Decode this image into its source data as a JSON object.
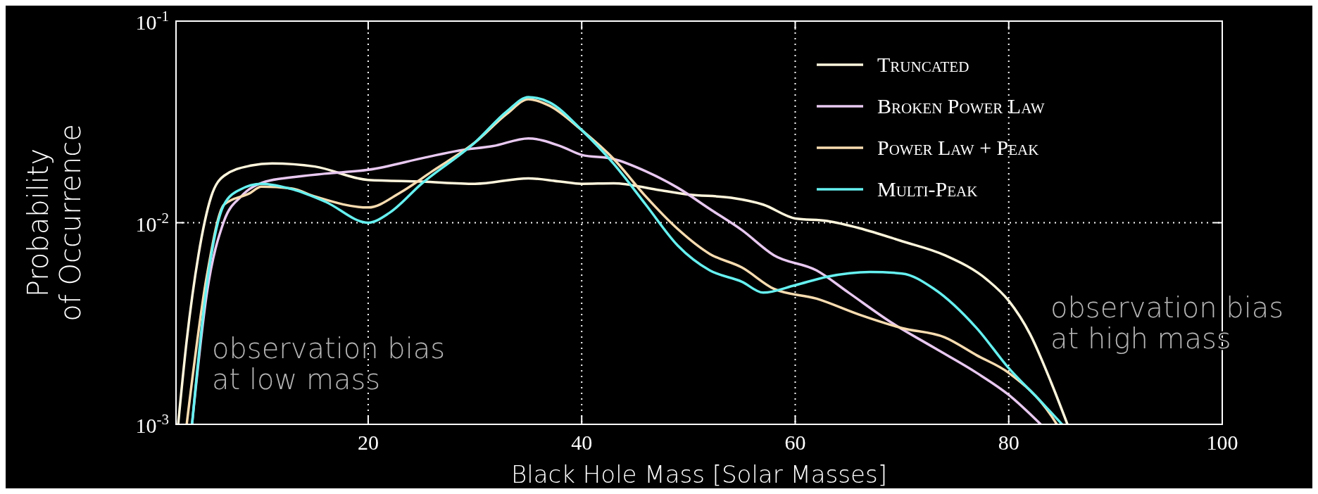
{
  "chart_data": {
    "type": "line",
    "xlabel": "Black Hole Mass [Solar Masses]",
    "ylabel": "Probability\nof Occurrence",
    "log": "y",
    "grid": true,
    "legend": "top right",
    "line_style": "solid",
    "xlim": [
      2,
      100
    ],
    "xticks": [
      20,
      40,
      60,
      80,
      100
    ],
    "ylim": [
      0.001,
      0.1
    ],
    "yticks": [
      {
        "value": 0.001,
        "label": "10$^{-3}$"
      },
      {
        "value": 0.01,
        "label": "10$^{-2}$"
      },
      {
        "value": 0.1,
        "label": "10$^{-1}$"
      }
    ],
    "annotations": [
      "observation bias\nat low mass",
      "observation bias\nat high mass"
    ],
    "series": [
      {
        "name": "Truncated",
        "color": "#fff6dc",
        "x": [
          2.2,
          3,
          4.1,
          5.3,
          6.5,
          9,
          11,
          15,
          20,
          25,
          30,
          35,
          38,
          40,
          43,
          47,
          50,
          54,
          57,
          60,
          63,
          66,
          70,
          74,
          78,
          80,
          82,
          84,
          85.5
        ],
        "values": [
          0.001,
          0.0026,
          0.0069,
          0.0135,
          0.0171,
          0.0192,
          0.0197,
          0.019,
          0.0163,
          0.016,
          0.0156,
          0.0166,
          0.016,
          0.0156,
          0.0157,
          0.0146,
          0.0138,
          0.0133,
          0.0123,
          0.0105,
          0.0102,
          0.0094,
          0.0081,
          0.0069,
          0.0052,
          0.0041,
          0.0028,
          0.0016,
          0.001
        ]
      },
      {
        "name": "Broken Power Law",
        "color": "#e8c8f0",
        "x": [
          3.5,
          4.9,
          6.5,
          8.1,
          10.4,
          12.8,
          15.9,
          20,
          25.4,
          28.5,
          31.7,
          35,
          38,
          40,
          43,
          46,
          49,
          52,
          55,
          58,
          62,
          65,
          69,
          73,
          77,
          80,
          83
        ],
        "values": [
          0.001,
          0.0045,
          0.0102,
          0.0135,
          0.016,
          0.0168,
          0.0175,
          0.0183,
          0.0211,
          0.0228,
          0.024,
          0.0262,
          0.024,
          0.0217,
          0.0207,
          0.018,
          0.0149,
          0.0117,
          0.0092,
          0.0069,
          0.0058,
          0.0045,
          0.0032,
          0.0024,
          0.0018,
          0.0014,
          0.001
        ]
      },
      {
        "name": "Power Law + Peak",
        "color": "#f8dcb0",
        "x": [
          3,
          4.9,
          6.5,
          8.9,
          10,
          12.8,
          15,
          20,
          23,
          26,
          30,
          33,
          35,
          37,
          40,
          43,
          46,
          49,
          52,
          55,
          58,
          62,
          66,
          70,
          74,
          77,
          80,
          84,
          84.5
        ],
        "values": [
          0.001,
          0.0055,
          0.0123,
          0.014,
          0.0151,
          0.0148,
          0.0135,
          0.0119,
          0.0141,
          0.018,
          0.025,
          0.0347,
          0.041,
          0.038,
          0.0288,
          0.0207,
          0.0135,
          0.0093,
          0.007,
          0.006,
          0.0047,
          0.0042,
          0.0035,
          0.003,
          0.0027,
          0.0022,
          0.0018,
          0.0011,
          0.001
        ]
      },
      {
        "name": "Multi-Peak",
        "color": "#66f0f0",
        "x": [
          3.5,
          4.9,
          6.5,
          8,
          10,
          13,
          16,
          20,
          22,
          25,
          30,
          33,
          35,
          37,
          40,
          43,
          46,
          49,
          52,
          55,
          57,
          60,
          63,
          67,
          70,
          73,
          77,
          80,
          83,
          85
        ],
        "values": [
          0.001,
          0.005,
          0.0123,
          0.0146,
          0.0156,
          0.0146,
          0.0127,
          0.01,
          0.0112,
          0.0156,
          0.025,
          0.0357,
          0.042,
          0.0395,
          0.0288,
          0.0196,
          0.0123,
          0.0077,
          0.0058,
          0.0051,
          0.0045,
          0.0049,
          0.0054,
          0.0057,
          0.0056,
          0.0047,
          0.003,
          0.0019,
          0.0013,
          0.001
        ]
      }
    ]
  }
}
